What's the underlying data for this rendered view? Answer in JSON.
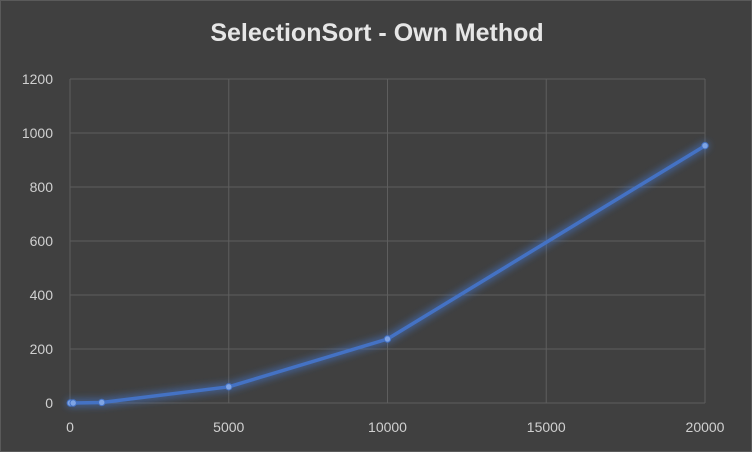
{
  "chart_data": {
    "type": "line",
    "title": "SelectionSort - Own Method",
    "xlabel": "",
    "ylabel": "",
    "xlim": [
      0,
      20000
    ],
    "ylim": [
      0,
      1200
    ],
    "x_ticks": [
      0,
      5000,
      10000,
      15000,
      20000
    ],
    "y_ticks": [
      0,
      200,
      400,
      600,
      800,
      1000,
      1200
    ],
    "grid": true,
    "legend": "none",
    "series": [
      {
        "color": "#4472c4",
        "points": [
          {
            "x": 10,
            "y": 0
          },
          {
            "x": 100,
            "y": 0
          },
          {
            "x": 1000,
            "y": 2
          },
          {
            "x": 5000,
            "y": 60
          },
          {
            "x": 10000,
            "y": 237
          },
          {
            "x": 20000,
            "y": 953
          }
        ]
      }
    ]
  }
}
